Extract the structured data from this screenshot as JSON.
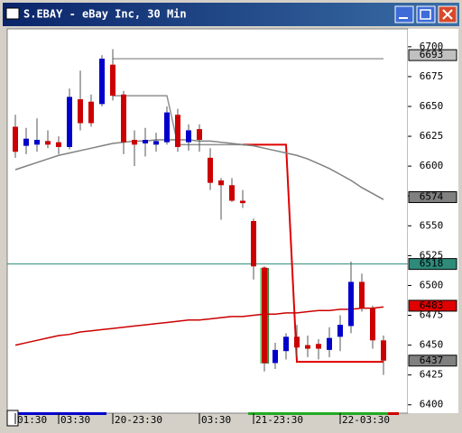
{
  "chart_data": {
    "type": "candlestick",
    "title": "S.EBAY - eBay Inc, 30 Min",
    "categories": [
      "01:30",
      null,
      null,
      null,
      "03:30",
      null,
      null,
      null,
      null,
      "20-23:30",
      null,
      null,
      null,
      null,
      null,
      null,
      null,
      "03:30",
      null,
      null,
      null,
      null,
      "21-23:30",
      null,
      null,
      null,
      null,
      null,
      null,
      null,
      "22-03:30",
      null,
      null,
      null,
      null
    ],
    "open": [
      6633,
      6617,
      6618,
      6621,
      6620,
      6616,
      6656,
      6654,
      6652,
      6685,
      6660,
      6622,
      6619,
      6618,
      6620,
      6643,
      6620,
      6631,
      6607,
      6588,
      6584,
      6571,
      6554,
      6515,
      6435,
      6445,
      6457,
      6450,
      6451,
      6446,
      6457,
      6466,
      6503,
      6481,
      6454
    ],
    "high": [
      6643,
      6632,
      6640,
      6630,
      6625,
      6665,
      6680,
      6660,
      6693,
      6698,
      6663,
      6630,
      6632,
      6628,
      6650,
      6648,
      6635,
      6635,
      6615,
      6590,
      6590,
      6580,
      6556,
      6516,
      6452,
      6460,
      6467,
      6458,
      6455,
      6465,
      6475,
      6520,
      6510,
      6483,
      6458
    ],
    "low": [
      6607,
      6610,
      6612,
      6615,
      6610,
      6614,
      6630,
      6633,
      6650,
      6655,
      6610,
      6600,
      6608,
      6612,
      6618,
      6612,
      6613,
      6612,
      6580,
      6555,
      6570,
      6565,
      6505,
      6428,
      6430,
      6438,
      6440,
      6440,
      6438,
      6440,
      6445,
      6460,
      6478,
      6447,
      6425
    ],
    "close": [
      6612,
      6623,
      6622,
      6618,
      6616,
      6658,
      6636,
      6636,
      6690,
      6659,
      6620,
      6618,
      6622,
      6621,
      6645,
      6616,
      6630,
      6622,
      6586,
      6584,
      6571,
      6569,
      6516,
      6435,
      6446,
      6457,
      6448,
      6447,
      6447,
      6456,
      6467,
      6503,
      6481,
      6454,
      6437
    ],
    "up_color": "#0000cc",
    "down_color": "#cc0000",
    "lines": [
      {
        "color": "#a0a0a0",
        "values": [
          null,
          null,
          null,
          null,
          null,
          null,
          null,
          null,
          null,
          6690,
          6690,
          6690,
          6690,
          6690,
          6690,
          6690,
          6690,
          6690,
          6690,
          6690,
          6690,
          6690,
          6690,
          6690,
          6690,
          6690,
          6690,
          6690,
          6690,
          6690,
          6690,
          6690,
          6690,
          6690,
          6690
        ]
      },
      {
        "color": "#909090",
        "values": [
          null,
          null,
          null,
          null,
          null,
          null,
          null,
          null,
          null,
          6659,
          6659,
          6659,
          6659,
          6659,
          6659,
          6618,
          6618,
          6618,
          6618,
          6618,
          6618,
          6618,
          null,
          null,
          null,
          null,
          null,
          null,
          null,
          null,
          null,
          null,
          null,
          null,
          null
        ]
      },
      {
        "color": "#e00000",
        "values": [
          null,
          null,
          null,
          null,
          null,
          null,
          null,
          null,
          null,
          null,
          null,
          null,
          null,
          null,
          null,
          null,
          null,
          null,
          null,
          null,
          null,
          6618,
          6618,
          6618,
          6618,
          6618,
          6436,
          6436,
          6436,
          6436,
          6436,
          6436,
          6436,
          6436,
          6436
        ]
      },
      {
        "color": "#808080",
        "values": [
          6597,
          6600,
          6603,
          6606,
          6609,
          6611,
          6613,
          6615,
          6617,
          6619,
          6620,
          6621,
          6621,
          6622,
          6622,
          6622,
          6622,
          6621,
          6621,
          6620,
          6619,
          6618,
          6617,
          6615,
          6613,
          6611,
          6609,
          6606,
          6602,
          6598,
          6593,
          6588,
          6582,
          6577,
          6572
        ]
      },
      {
        "color": "#cc0000",
        "values": [
          6450,
          6452,
          6454,
          6456,
          6458,
          6459,
          6461,
          6462,
          6463,
          6464,
          6465,
          6466,
          6467,
          6468,
          6469,
          6470,
          6471,
          6471,
          6472,
          6473,
          6474,
          6474,
          6475,
          6476,
          6476,
          6477,
          6477,
          6478,
          6479,
          6479,
          6480,
          6480,
          6481,
          6481,
          6482
        ]
      }
    ],
    "hline": {
      "value": 6518,
      "color": "#2e8b7a"
    },
    "price_labels": [
      {
        "value": 6693,
        "color": "#c0c0c0"
      },
      {
        "value": 6574,
        "color": "#808080"
      },
      {
        "value": 6518,
        "color": "#2e8b7a"
      },
      {
        "value": 6483,
        "color": "#e00000"
      },
      {
        "value": 6437,
        "color": "#808080"
      }
    ],
    "ylim": [
      6393,
      6715
    ],
    "yticks": [
      6400,
      6425,
      6450,
      6475,
      6500,
      6525,
      6550,
      6575,
      6600,
      6625,
      6650,
      6675,
      6700
    ]
  }
}
